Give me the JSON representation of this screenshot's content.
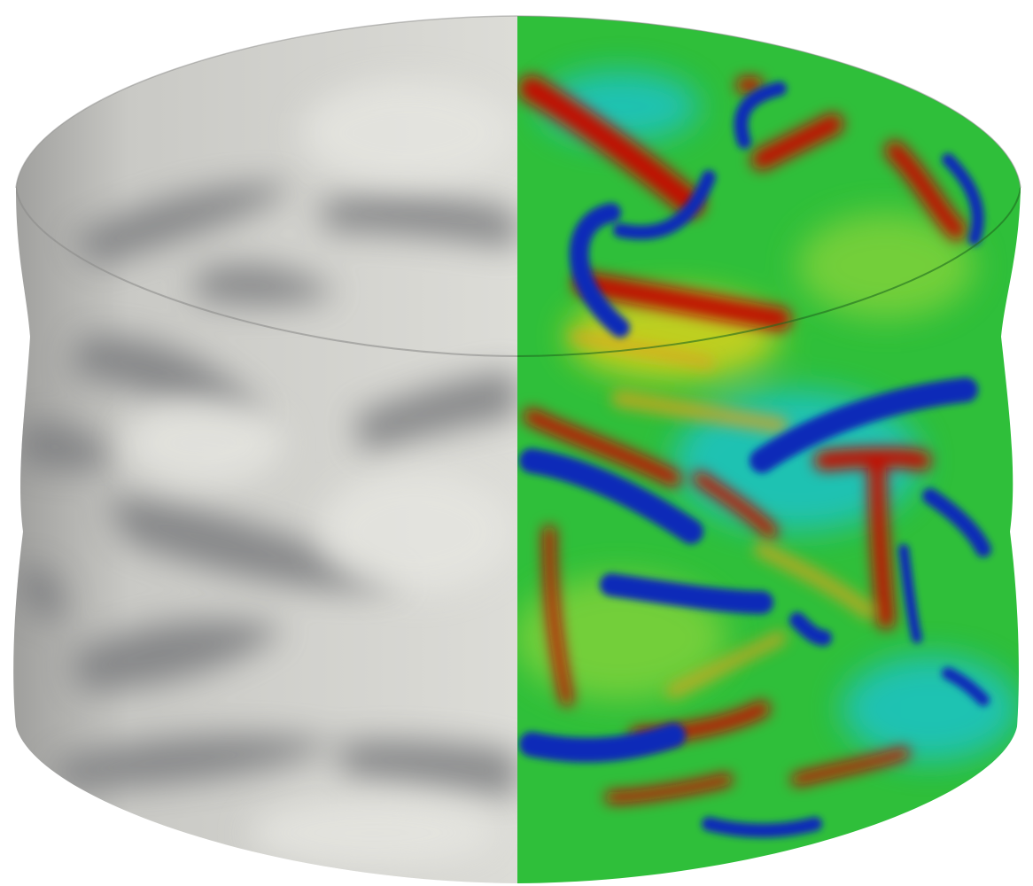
{
  "scene": {
    "left_half_shading": "grayscale",
    "right_half_shading": "jet-colormap",
    "colors": {
      "background": "#ffffff",
      "gray_light": "#dcdcd8",
      "gray_mid": "#b9b9b6",
      "gray_dark": "#7d7e80",
      "jet_green": "#2fbf3a",
      "jet_cyan": "#1fc3c8",
      "jet_blue": "#0a2bb8",
      "jet_yellow": "#d8d21a",
      "jet_red": "#c20d06"
    }
  }
}
